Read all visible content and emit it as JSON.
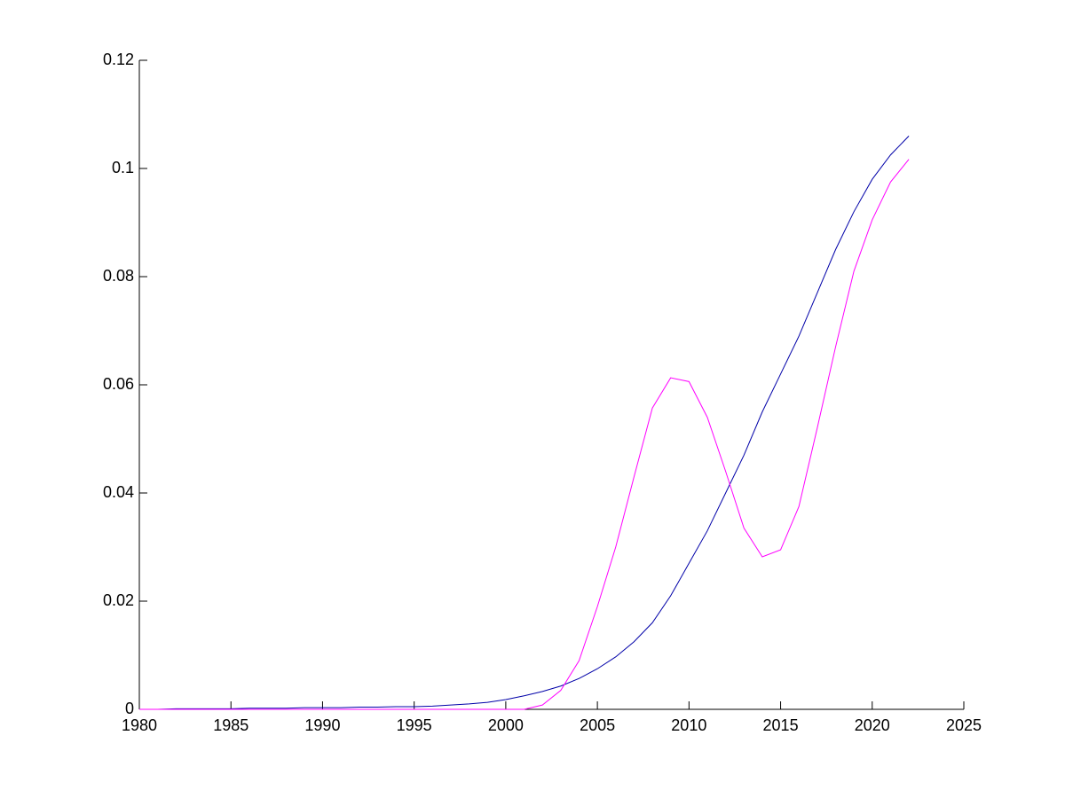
{
  "chart_data": {
    "type": "line",
    "x": [
      1980,
      1981,
      1982,
      1983,
      1984,
      1985,
      1986,
      1987,
      1988,
      1989,
      1990,
      1991,
      1992,
      1993,
      1994,
      1995,
      1996,
      1997,
      1998,
      1999,
      2000,
      2001,
      2002,
      2003,
      2004,
      2005,
      2006,
      2007,
      2008,
      2009,
      2010,
      2011,
      2012,
      2013,
      2014,
      2015,
      2016,
      2017,
      2018,
      2019,
      2020,
      2021,
      2022
    ],
    "series": [
      {
        "color": "#0000a8",
        "values": [
          0,
          0,
          0.0001,
          0.0001,
          0.0001,
          0.0001,
          0.0002,
          0.0002,
          0.0002,
          0.0003,
          0.0003,
          0.0003,
          0.0004,
          0.0004,
          0.0005,
          0.0005,
          0.0006,
          0.0008,
          0.001,
          0.0013,
          0.0018,
          0.0025,
          0.0033,
          0.0043,
          0.0057,
          0.0075,
          0.0097,
          0.0125,
          0.016,
          0.021,
          0.027,
          0.033,
          0.04,
          0.047,
          0.055,
          0.062,
          0.069,
          0.077,
          0.085,
          0.092,
          0.098,
          0.1025,
          0.106
        ]
      },
      {
        "color": "#ff00ff",
        "values": [
          0,
          0,
          0,
          0,
          0,
          0,
          0,
          0,
          0,
          0,
          0,
          0,
          0,
          0,
          0,
          0,
          0,
          0,
          0,
          0,
          0,
          0,
          0.0008,
          0.0035,
          0.009,
          0.019,
          0.03,
          0.043,
          0.0557,
          0.0613,
          0.0606,
          0.054,
          0.044,
          0.0335,
          0.0282,
          0.0295,
          0.0375,
          0.052,
          0.067,
          0.081,
          0.0905,
          0.0975,
          0.1017
        ]
      }
    ],
    "xlim": [
      1980,
      2025
    ],
    "xticks": [
      1980,
      1985,
      1990,
      1995,
      2000,
      2005,
      2010,
      2015,
      2020,
      2025
    ],
    "ylim": [
      0,
      0.12
    ],
    "yticks": [
      0,
      0.02,
      0.04,
      0.06,
      0.08,
      0.1,
      0.12
    ]
  }
}
